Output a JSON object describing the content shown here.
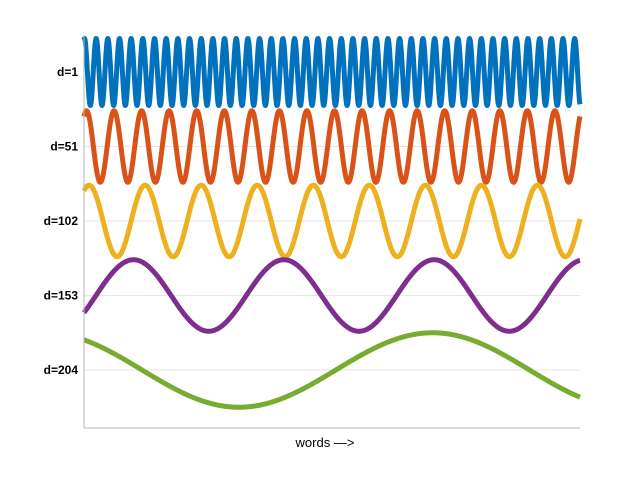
{
  "chart_data": {
    "type": "line",
    "title": "",
    "xlabel": "words —>",
    "ylabel": "",
    "x_range": [
      0,
      1
    ],
    "y_tick_labels": [
      "d=1",
      "d=51",
      "d=102",
      "d=153",
      "d=204"
    ],
    "grid": "horizontal",
    "legend": "none",
    "series": [
      {
        "label": "d=1",
        "color": "#0072BD",
        "baseline_index": 0,
        "amplitude": 0.45,
        "cycles": 42.5,
        "phase": 1.3
      },
      {
        "label": "d=51",
        "color": "#D95319",
        "baseline_index": 1,
        "amplitude": 0.48,
        "cycles": 18.0,
        "phase": 1.0
      },
      {
        "label": "d=102",
        "color": "#EDB120",
        "baseline_index": 2,
        "amplitude": 0.48,
        "cycles": 8.85,
        "phase": 1.0
      },
      {
        "label": "d=153",
        "color": "#7E2F8E",
        "baseline_index": 3,
        "amplitude": 0.48,
        "cycles": 3.3,
        "phase": -0.5
      },
      {
        "label": "d=204",
        "color": "#77AC30",
        "baseline_index": 4,
        "amplitude": 0.5,
        "cycles": 1.28,
        "phase": 2.2
      }
    ]
  }
}
